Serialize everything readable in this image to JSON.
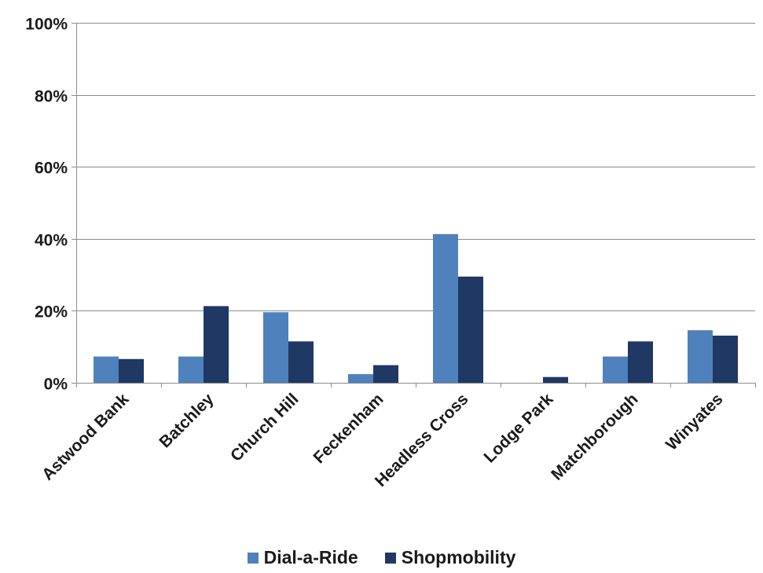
{
  "chart_data": {
    "type": "bar",
    "categories": [
      "Astwood Bank",
      "Batchley",
      "Church Hill",
      "Feckenham",
      "Headless Cross",
      "Lodge Park",
      "Matchborough",
      "Winyates"
    ],
    "series": [
      {
        "name": "Dial-a-Ride",
        "color": "#4f81bd",
        "values": [
          7.3,
          7.3,
          19.6,
          2.4,
          41.3,
          0,
          7.3,
          14.6
        ]
      },
      {
        "name": "Shopmobility",
        "color": "#1f3864",
        "values": [
          6.6,
          21.3,
          11.5,
          4.9,
          29.5,
          1.6,
          11.5,
          13.1
        ]
      }
    ],
    "y_ticks": [
      "0%",
      "20%",
      "40%",
      "60%",
      "80%",
      "100%"
    ],
    "ylim": [
      0,
      100
    ],
    "y_unit": "%",
    "grid": true,
    "legend_position": "bottom",
    "title": "",
    "xlabel": "",
    "ylabel": ""
  }
}
